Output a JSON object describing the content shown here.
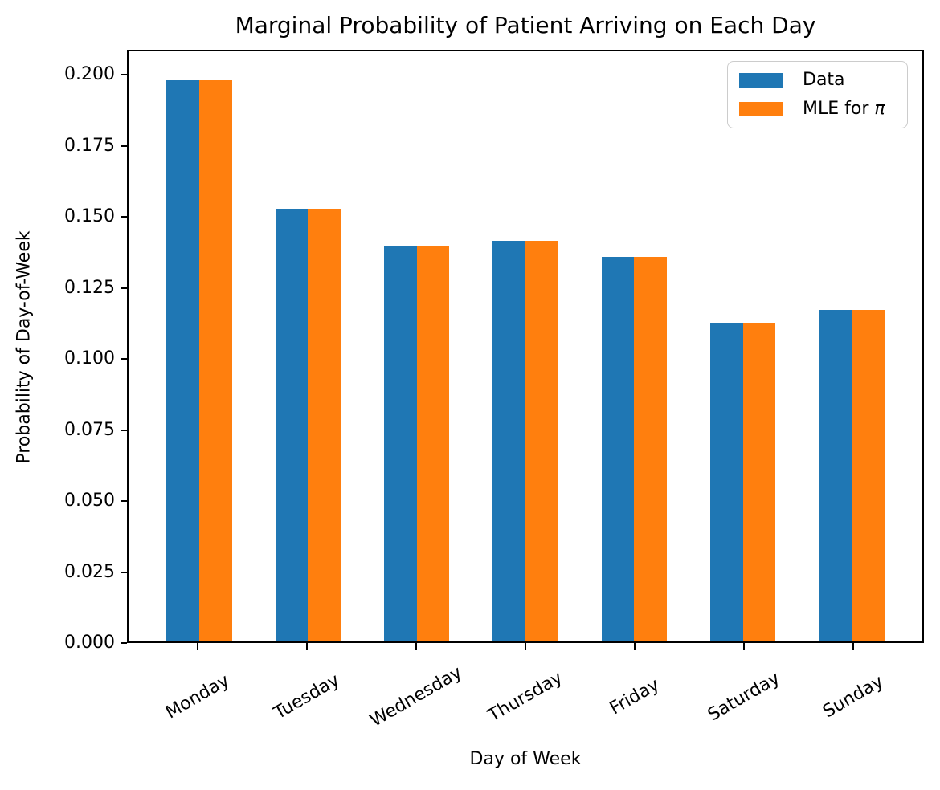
{
  "chart_data": {
    "type": "bar",
    "title": "Marginal Probability of Patient Arriving on Each Day",
    "xlabel": "Day of Week",
    "ylabel": "Probability of Day-of-Week",
    "categories": [
      "Monday",
      "Tuesday",
      "Wednesday",
      "Thursday",
      "Friday",
      "Saturday",
      "Sunday"
    ],
    "series": [
      {
        "name": "Data",
        "color": "#1f77b4",
        "values": [
          0.1985,
          0.153,
          0.1399,
          0.1418,
          0.136,
          0.1128,
          0.1172
        ]
      },
      {
        "name": "MLE for π",
        "color": "#ff7f0e",
        "values": [
          0.1985,
          0.153,
          0.1399,
          0.1418,
          0.136,
          0.1128,
          0.1172
        ]
      }
    ],
    "y_ticks": [
      "0.000",
      "0.025",
      "0.050",
      "0.075",
      "0.100",
      "0.125",
      "0.150",
      "0.175",
      "0.200"
    ],
    "ylim": [
      0,
      0.2088
    ],
    "bar_width_frac": 0.3,
    "x_tick_rotation_deg": 30,
    "grid": false,
    "legend_position": "upper right",
    "axis_color": "#000000",
    "background_color": "#ffffff"
  },
  "legend": {
    "items": [
      {
        "label": "Data",
        "color": "#1f77b4"
      },
      {
        "label_prefix": "MLE for ",
        "label_symbol": "π",
        "color": "#ff7f0e"
      }
    ]
  }
}
